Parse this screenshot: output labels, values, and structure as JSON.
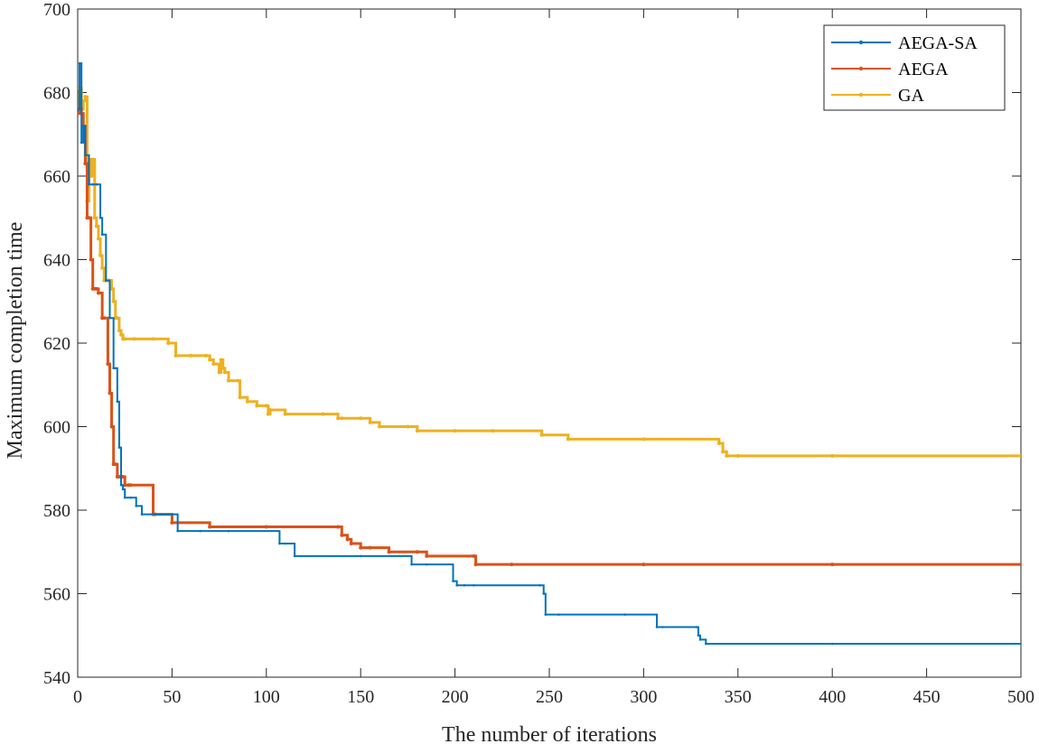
{
  "chart_data": {
    "type": "line",
    "title": "",
    "xlabel": "The number of iterations",
    "ylabel": "Maximum completion time",
    "xlim": [
      0,
      500
    ],
    "ylim": [
      540,
      700
    ],
    "xticks": [
      0,
      50,
      100,
      150,
      200,
      250,
      300,
      350,
      400,
      450,
      500
    ],
    "yticks": [
      540,
      560,
      580,
      600,
      620,
      640,
      660,
      680,
      700
    ],
    "grid": false,
    "legend_position": "top-right",
    "series": [
      {
        "name": "AEGA-SA",
        "color": "#0072BD",
        "marker": "dot-small",
        "x": [
          0,
          1,
          2,
          3,
          4,
          6,
          8,
          10,
          12,
          13,
          15,
          17,
          19,
          20,
          21,
          22,
          23,
          24,
          25,
          28,
          31,
          34,
          53,
          65,
          80,
          107,
          110,
          115,
          150,
          177,
          185,
          199,
          201,
          205,
          210,
          245,
          247,
          248,
          255,
          290,
          307,
          310,
          328,
          329,
          330,
          333,
          400,
          500
        ],
        "y": [
          676,
          687,
          668,
          672,
          665,
          658,
          658,
          658,
          650,
          646,
          635,
          626,
          614,
          614,
          606,
          595,
          586,
          585,
          583,
          583,
          581,
          579,
          575,
          575,
          575,
          572,
          572,
          569,
          569,
          567,
          567,
          563,
          562,
          562,
          562,
          562,
          560,
          555,
          555,
          555,
          552,
          552,
          552,
          550,
          549,
          548,
          548,
          548
        ]
      },
      {
        "name": "AEGA",
        "color": "#D95319",
        "marker": "dot",
        "x": [
          0,
          1,
          2,
          3,
          4,
          5,
          6,
          7,
          8,
          9,
          10,
          11,
          13,
          14,
          16,
          17,
          18,
          19,
          20,
          21,
          22,
          24,
          25,
          27,
          28,
          40,
          41,
          50,
          70,
          100,
          138,
          140,
          143,
          145,
          150,
          155,
          165,
          180,
          185,
          210,
          211,
          230,
          300,
          400,
          500
        ],
        "y": [
          675,
          676,
          675,
          672,
          663,
          650,
          650,
          640,
          633,
          633,
          633,
          632,
          626,
          626,
          615,
          608,
          600,
          591,
          591,
          588,
          588,
          588,
          586,
          586,
          586,
          579,
          579,
          577,
          576,
          576,
          576,
          574,
          573,
          572,
          571,
          571,
          570,
          570,
          569,
          569,
          567,
          567,
          567,
          567,
          567
        ]
      },
      {
        "name": "GA",
        "color": "#EDB120",
        "marker": "dot",
        "x": [
          0,
          1,
          2,
          3,
          4,
          5,
          6,
          7,
          8,
          9,
          10,
          11,
          12,
          13,
          14,
          15,
          16,
          17,
          18,
          19,
          20,
          21,
          22,
          23,
          24,
          25,
          30,
          40,
          48,
          52,
          60,
          68,
          70,
          72,
          75,
          76,
          77,
          78,
          80,
          85,
          86,
          90,
          95,
          100,
          101,
          102,
          110,
          130,
          138,
          140,
          150,
          155,
          160,
          175,
          180,
          200,
          220,
          246,
          260,
          300,
          340,
          342,
          344,
          350,
          400,
          500
        ],
        "y": [
          675,
          681,
          676,
          678,
          679,
          654,
          664,
          660,
          664,
          650,
          648,
          645,
          641,
          638,
          635,
          635,
          635,
          635,
          633,
          630,
          626,
          626,
          623,
          622,
          621,
          621,
          621,
          621,
          620,
          617,
          617,
          617,
          616,
          615,
          613,
          616,
          614,
          613,
          611,
          611,
          607,
          606,
          605,
          605,
          603,
          604,
          603,
          603,
          602,
          602,
          602,
          601,
          600,
          600,
          599,
          599,
          599,
          598,
          597,
          597,
          596,
          594,
          593,
          593,
          593,
          593
        ]
      }
    ]
  }
}
